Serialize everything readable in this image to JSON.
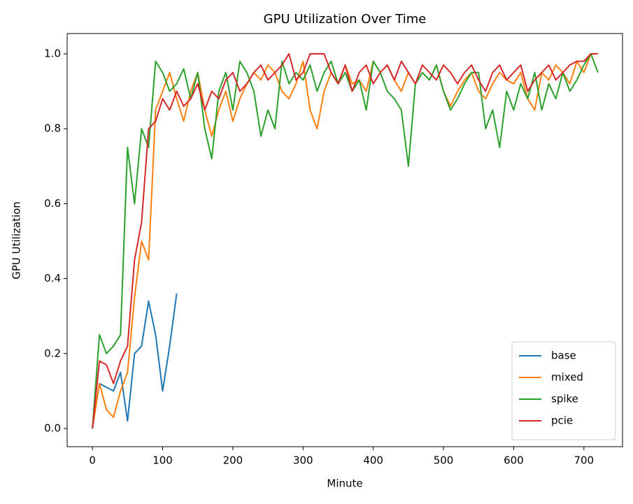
{
  "chart_data": {
    "type": "line",
    "title": "GPU Utilization Over Time",
    "xlabel": "Minute",
    "ylabel": "GPU Utilization",
    "xlim": [
      -36,
      755
    ],
    "ylim": [
      -0.0485,
      1.054
    ],
    "xticks": [
      0,
      100,
      200,
      300,
      400,
      500,
      600,
      700
    ],
    "yticks": [
      {
        "value": 0,
        "label": "0.0"
      },
      0.2,
      0.4,
      0.6,
      0.8,
      {
        "value": 1,
        "label": "1.0"
      }
    ],
    "legend": "lower right",
    "x": [
      0,
      10,
      20,
      30,
      40,
      50,
      60,
      70,
      80,
      90,
      100,
      110,
      120,
      130,
      140,
      150,
      160,
      170,
      180,
      190,
      200,
      210,
      220,
      230,
      240,
      250,
      260,
      270,
      280,
      290,
      300,
      310,
      320,
      330,
      340,
      350,
      360,
      370,
      380,
      390,
      400,
      410,
      420,
      430,
      440,
      450,
      460,
      470,
      480,
      490,
      500,
      510,
      520,
      530,
      540,
      550,
      560,
      570,
      580,
      590,
      600,
      610,
      620,
      630,
      640,
      650,
      660,
      670,
      680,
      690,
      700,
      710,
      720
    ],
    "series": [
      {
        "name": "base",
        "color": "#1f77b4",
        "values": [
          0,
          0.12,
          0.11,
          0.1,
          0.15,
          0.02,
          0.2,
          0.22,
          0.34,
          0.25,
          0.1,
          0.22,
          0.36,
          null,
          null,
          null,
          null,
          null,
          null,
          null,
          null,
          null,
          null,
          null,
          null,
          null,
          null,
          null,
          null,
          null,
          null,
          null,
          null,
          null,
          null,
          null,
          null,
          null,
          null,
          null,
          null,
          null,
          null,
          null,
          null,
          null,
          null,
          null,
          null,
          null,
          null,
          null,
          null,
          null,
          null,
          null,
          null,
          null,
          null,
          null,
          null,
          null,
          null,
          null,
          null,
          null,
          null,
          null,
          null,
          null,
          null,
          null,
          null
        ]
      },
      {
        "name": "mixed",
        "color": "#ff7f0e",
        "values": [
          0,
          0.12,
          0.05,
          0.03,
          0.1,
          0.15,
          0.35,
          0.5,
          0.45,
          0.85,
          0.9,
          0.95,
          0.88,
          0.82,
          0.9,
          0.95,
          0.85,
          0.78,
          0.85,
          0.9,
          0.82,
          0.88,
          0.92,
          0.95,
          0.93,
          0.97,
          0.95,
          0.9,
          0.88,
          0.92,
          0.98,
          0.85,
          0.8,
          0.9,
          0.95,
          0.92,
          0.97,
          0.92,
          0.93,
          0.9,
          0.98,
          0.95,
          0.97,
          0.93,
          0.9,
          0.95,
          0.92,
          0.95,
          0.93,
          0.97,
          0.9,
          0.86,
          0.9,
          0.93,
          0.95,
          0.9,
          0.88,
          0.92,
          0.95,
          0.93,
          0.92,
          0.95,
          0.88,
          0.85,
          0.95,
          0.93,
          0.97,
          0.95,
          0.92,
          0.98,
          0.95,
          1.0,
          1.0
        ]
      },
      {
        "name": "spike",
        "color": "#2ca02c",
        "values": [
          0,
          0.25,
          0.2,
          0.22,
          0.25,
          0.75,
          0.6,
          0.8,
          0.75,
          0.98,
          0.95,
          0.9,
          0.92,
          0.96,
          0.88,
          0.95,
          0.8,
          0.72,
          0.9,
          0.95,
          0.85,
          0.98,
          0.95,
          0.9,
          0.78,
          0.85,
          0.8,
          0.98,
          0.92,
          0.95,
          0.93,
          0.97,
          0.9,
          0.95,
          0.98,
          0.92,
          0.95,
          0.9,
          0.93,
          0.85,
          0.98,
          0.95,
          0.9,
          0.88,
          0.85,
          0.7,
          0.92,
          0.95,
          0.93,
          0.97,
          0.9,
          0.85,
          0.88,
          0.92,
          0.95,
          0.95,
          0.8,
          0.85,
          0.75,
          0.9,
          0.85,
          0.92,
          0.88,
          0.95,
          0.85,
          0.92,
          0.88,
          0.95,
          0.9,
          0.93,
          0.97,
          1.0,
          0.95
        ]
      },
      {
        "name": "pcie",
        "color": "#d62728",
        "values": [
          0,
          0.18,
          0.17,
          0.12,
          0.18,
          0.22,
          0.45,
          0.55,
          0.8,
          0.82,
          0.88,
          0.85,
          0.9,
          0.86,
          0.88,
          0.92,
          0.85,
          0.9,
          0.88,
          0.93,
          0.95,
          0.9,
          0.92,
          0.95,
          0.97,
          0.93,
          0.95,
          0.97,
          1.0,
          0.93,
          0.95,
          1.0,
          1.0,
          1.0,
          0.95,
          0.92,
          0.97,
          0.9,
          0.95,
          0.97,
          0.92,
          0.95,
          0.97,
          0.93,
          0.98,
          0.95,
          0.92,
          0.97,
          0.95,
          0.93,
          0.97,
          0.95,
          0.92,
          0.95,
          0.97,
          0.93,
          0.9,
          0.95,
          0.97,
          0.93,
          0.95,
          0.97,
          0.9,
          0.93,
          0.95,
          0.97,
          0.93,
          0.95,
          0.97,
          0.98,
          0.98,
          1.0,
          1.0
        ]
      }
    ]
  }
}
